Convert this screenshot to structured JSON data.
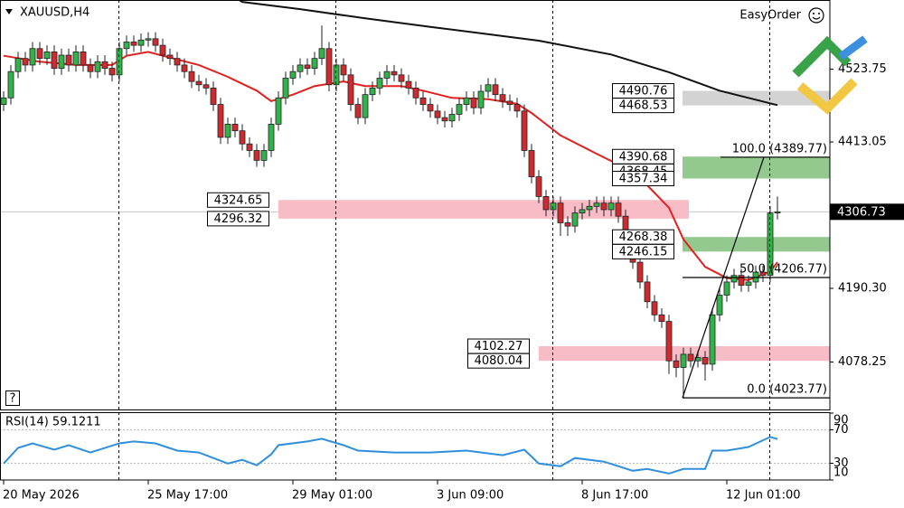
{
  "chart_data": {
    "type": "candlestick",
    "title": "XAUUSD,H4",
    "plugin": "EasyOrder",
    "help": "?",
    "up_color": "#33b24a",
    "down_color": "#cf2b2f",
    "xlim": [
      -0.5,
      114.25
    ],
    "ylim": [
      4006.05,
      4628.9
    ],
    "yticks": [
      {
        "value": 4523.75,
        "label": "4523.75"
      },
      {
        "value": 4413.05,
        "label": "4413.05"
      },
      {
        "value": 4190.3,
        "label": "4190.30"
      },
      {
        "value": 4078.25,
        "label": "4078.25"
      }
    ],
    "current_price": 4306.73,
    "xticks": [
      {
        "value": 0,
        "label": "20 May 2026"
      },
      {
        "value": 20,
        "label": "25 May 17:00"
      },
      {
        "value": 40,
        "label": "29 May 01:00"
      },
      {
        "value": 60,
        "label": "3 Jun 09:00"
      },
      {
        "value": 80,
        "label": "8 Jun 17:00"
      },
      {
        "value": 100,
        "label": "12 Jun 01:00"
      }
    ],
    "open": [
      4470,
      4480,
      4520,
      4540,
      4530,
      4555,
      4540,
      4550,
      4525,
      4545,
      4530,
      4550,
      4530,
      4520,
      4535,
      4525,
      4515,
      4555,
      4565,
      4560,
      4568,
      4570,
      4560,
      4545,
      4540,
      4530,
      4520,
      4505,
      4500,
      4495,
      4470,
      4420,
      4440,
      4430,
      4410,
      4400,
      4385,
      4400,
      4440,
      4480,
      4510,
      4520,
      4530,
      4525,
      4540,
      4555,
      4500,
      4530,
      4515,
      4470,
      4450,
      4485,
      4495,
      4510,
      4520,
      4515,
      4505,
      4495,
      4480,
      4470,
      4460,
      4450,
      4445,
      4455,
      4470,
      4480,
      4465,
      4490,
      4500,
      4485,
      4475,
      4470,
      4460,
      4400,
      4360,
      4330,
      4310,
      4320,
      4290,
      4285,
      4305,
      4310,
      4315,
      4320,
      4310,
      4320,
      4300,
      4250,
      4230,
      4200,
      4170,
      4150,
      4140,
      4080,
      4070,
      4090,
      4080,
      4085,
      4075,
      4150,
      4180,
      4200,
      4210,
      4195,
      4200,
      4215,
      4210,
      4305
    ],
    "high": [
      4490,
      4530,
      4550,
      4550,
      4565,
      4565,
      4560,
      4560,
      4555,
      4555,
      4560,
      4560,
      4540,
      4545,
      4545,
      4535,
      4565,
      4575,
      4575,
      4578,
      4580,
      4580,
      4570,
      4555,
      4550,
      4540,
      4530,
      4515,
      4510,
      4505,
      4480,
      4450,
      4450,
      4440,
      4420,
      4410,
      4410,
      4450,
      4490,
      4520,
      4530,
      4540,
      4540,
      4550,
      4590,
      4565,
      4540,
      4540,
      4525,
      4480,
      4495,
      4505,
      4520,
      4530,
      4530,
      4525,
      4515,
      4505,
      4490,
      4480,
      4470,
      4460,
      4465,
      4480,
      4490,
      4490,
      4500,
      4510,
      4510,
      4495,
      4485,
      4480,
      4470,
      4410,
      4370,
      4340,
      4330,
      4330,
      4300,
      4315,
      4320,
      4325,
      4330,
      4330,
      4330,
      4330,
      4310,
      4260,
      4240,
      4210,
      4180,
      4160,
      4150,
      4090,
      4100,
      4100,
      4095,
      4095,
      4160,
      4190,
      4210,
      4220,
      4220,
      4210,
      4225,
      4225,
      4315,
      4330
    ],
    "low": [
      4460,
      4470,
      4510,
      4520,
      4520,
      4530,
      4530,
      4515,
      4515,
      4520,
      4520,
      4520,
      4510,
      4510,
      4515,
      4505,
      4505,
      4545,
      4550,
      4550,
      4558,
      4550,
      4535,
      4530,
      4520,
      4510,
      4495,
      4490,
      4485,
      4460,
      4410,
      4410,
      4420,
      4400,
      4390,
      4375,
      4375,
      4390,
      4430,
      4470,
      4500,
      4510,
      4515,
      4515,
      4530,
      4490,
      4490,
      4505,
      4460,
      4440,
      4440,
      4475,
      4485,
      4500,
      4505,
      4495,
      4485,
      4470,
      4460,
      4450,
      4440,
      4435,
      4435,
      4445,
      4460,
      4455,
      4455,
      4480,
      4475,
      4465,
      4460,
      4450,
      4390,
      4350,
      4320,
      4300,
      4300,
      4270,
      4270,
      4275,
      4295,
      4300,
      4305,
      4300,
      4300,
      4290,
      4240,
      4220,
      4190,
      4160,
      4140,
      4130,
      4060,
      4055,
      4023.77,
      4070,
      4070,
      4050,
      4065,
      4140,
      4170,
      4190,
      4185,
      4185,
      4190,
      4200,
      4200,
      4295
    ],
    "close": [
      4480,
      4520,
      4540,
      4530,
      4555,
      4540,
      4550,
      4525,
      4545,
      4530,
      4550,
      4530,
      4520,
      4535,
      4525,
      4515,
      4555,
      4565,
      4560,
      4568,
      4570,
      4560,
      4545,
      4540,
      4530,
      4520,
      4505,
      4500,
      4495,
      4470,
      4420,
      4440,
      4430,
      4410,
      4400,
      4385,
      4400,
      4440,
      4480,
      4510,
      4520,
      4530,
      4525,
      4540,
      4555,
      4500,
      4530,
      4515,
      4470,
      4450,
      4485,
      4495,
      4510,
      4520,
      4515,
      4505,
      4495,
      4480,
      4470,
      4460,
      4450,
      4445,
      4455,
      4470,
      4480,
      4465,
      4490,
      4500,
      4485,
      4475,
      4470,
      4460,
      4400,
      4360,
      4330,
      4310,
      4320,
      4290,
      4285,
      4305,
      4310,
      4315,
      4320,
      4310,
      4320,
      4300,
      4250,
      4230,
      4200,
      4170,
      4150,
      4140,
      4080,
      4070,
      4090,
      4080,
      4085,
      4075,
      4150,
      4180,
      4200,
      4210,
      4195,
      4200,
      4215,
      4210,
      4305,
      4306.73
    ],
    "lines": [
      {
        "color": "#e0211f",
        "index": [
          0,
          5,
          10,
          15,
          17,
          20,
          22,
          27,
          31,
          35,
          37,
          40,
          43,
          47,
          50,
          55,
          58,
          62,
          67,
          71,
          73,
          77,
          82,
          87,
          89,
          92,
          94,
          97,
          100,
          103,
          106,
          107
        ],
        "values": [
          4544,
          4535,
          4530,
          4530,
          4544,
          4550,
          4544,
          4530,
          4512,
          4491,
          4475,
          4485,
          4498,
          4505,
          4498,
          4498,
          4491,
          4480,
          4478,
          4471,
          4457,
          4423,
          4395,
          4368,
          4347,
          4313,
          4265,
          4223,
          4206,
          4203,
          4216,
          4230
        ]
      },
      {
        "color": "#111111",
        "index": [
          31,
          33,
          41,
          50,
          59,
          74,
          84,
          92,
          99,
          107
        ],
        "values": [
          4640,
          4626,
          4615,
          4601,
          4588,
          4567,
          4546,
          4519,
          4491,
          4469
        ]
      }
    ],
    "zones": [
      {
        "color": "#d3d3d3",
        "values": [
          4490.76,
          4468.53
        ]
      },
      {
        "color": "#93c98f",
        "values": [
          4390.68,
          4368.45,
          4357.34
        ]
      },
      {
        "color": "#f7bcc6",
        "values": [
          4324.65,
          4296.32
        ]
      },
      {
        "color": "#93c98f",
        "values": [
          4268.38,
          4246.15
        ]
      },
      {
        "color": "#f7bcc6",
        "values": [
          4102.27,
          4080.04
        ]
      }
    ],
    "fib": [
      {
        "value": 4389.77,
        "label": "100.0 (4389.77)"
      },
      {
        "value": 4206.77,
        "label": "50.0 (4206.77)"
      },
      {
        "value": 4023.77,
        "label": "0.0 (4023.77)"
      }
    ],
    "rsi": {
      "title": "RSI(14) 59.1211",
      "color": "#2f8fdd",
      "ylim": [
        10,
        90
      ],
      "yticks": [
        90,
        70,
        30,
        10
      ],
      "levels": [
        70,
        30
      ],
      "index": [
        0,
        2,
        4,
        7,
        9,
        12,
        16,
        18,
        21,
        24,
        27,
        31,
        33,
        35,
        37,
        38,
        42,
        44,
        47,
        49,
        54,
        59,
        64,
        69,
        72,
        74,
        77,
        79,
        83,
        87,
        89,
        92,
        94,
        97,
        98,
        100,
        103,
        106,
        107
      ],
      "values": [
        29.7,
        48.4,
        53.8,
        46.2,
        51.6,
        42.9,
        53.8,
        56.0,
        53.8,
        45.1,
        42.9,
        29.7,
        34.1,
        27.5,
        40.7,
        51.6,
        56.0,
        59.3,
        51.6,
        45.1,
        42.9,
        42.9,
        45.1,
        39.6,
        46.2,
        29.7,
        26.4,
        36.3,
        31.9,
        21.0,
        23.2,
        17.7,
        23.2,
        23.2,
        45.1,
        45.1,
        49.5,
        61.5,
        59.1211
      ]
    }
  }
}
